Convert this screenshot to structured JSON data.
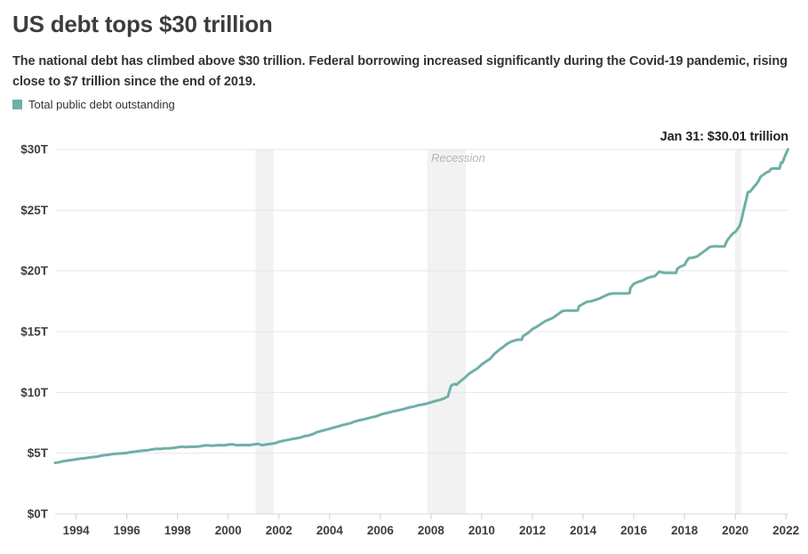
{
  "header": {
    "title": "US debt tops $30 trillion",
    "subtitle": "The national debt has climbed above $30 trillion. Federal borrowing increased significantly during the Covid-19 pandemic, rising close to $7 trillion since the end of 2019."
  },
  "legend": {
    "label": "Total public debt outstanding",
    "swatch_color": "#6fafa7"
  },
  "annotation": "Jan 31: $30.01 trillion",
  "recession_label": "Recession",
  "colors": {
    "line": "#6fafa7",
    "band": "#f2f2f2",
    "grid": "#e7e7e7",
    "axis": "#d8d8d8",
    "tick": "#cccccc",
    "axis_text": "#3f3f3f",
    "title_text": "#3d3d3d",
    "muted_text": "#b5b5b5"
  },
  "chart_data": {
    "type": "line",
    "title": "US debt tops $30 trillion",
    "series_name": "Total public debt outstanding",
    "unit": "trillions of US dollars",
    "xlabel": "",
    "ylabel": "",
    "ylim": [
      0,
      30
    ],
    "x_range": [
      1993.17,
      2022.1
    ],
    "grid": "horizontal",
    "legend_position": "top-left",
    "annotation": {
      "text": "Jan 31: $30.01 trillion",
      "x": 2022.08,
      "y": 30.01
    },
    "y_ticks": [
      "$0T",
      "$5T",
      "$10T",
      "$15T",
      "$20T",
      "$25T",
      "$30T"
    ],
    "y_tick_values": [
      0,
      5,
      10,
      15,
      20,
      25,
      30
    ],
    "x_tick_values": [
      1994,
      1996,
      1998,
      2000,
      2002,
      2004,
      2006,
      2008,
      2010,
      2012,
      2014,
      2016,
      2018,
      2020,
      2022
    ],
    "recession_bands": [
      [
        2001.08,
        2001.79
      ],
      [
        2007.85,
        2009.37
      ],
      [
        2020.0,
        2020.25
      ]
    ],
    "points": [
      [
        1993.17,
        4.21
      ],
      [
        1993.33,
        4.26
      ],
      [
        1993.5,
        4.35
      ],
      [
        1993.67,
        4.4
      ],
      [
        1993.83,
        4.44
      ],
      [
        1994.0,
        4.5
      ],
      [
        1994.17,
        4.55
      ],
      [
        1994.33,
        4.59
      ],
      [
        1994.5,
        4.64
      ],
      [
        1994.67,
        4.68
      ],
      [
        1994.83,
        4.72
      ],
      [
        1995.0,
        4.8
      ],
      [
        1995.17,
        4.85
      ],
      [
        1995.33,
        4.89
      ],
      [
        1995.5,
        4.95
      ],
      [
        1995.67,
        4.97
      ],
      [
        1995.83,
        4.99
      ],
      [
        1996.0,
        5.02
      ],
      [
        1996.17,
        5.09
      ],
      [
        1996.33,
        5.13
      ],
      [
        1996.5,
        5.19
      ],
      [
        1996.67,
        5.22
      ],
      [
        1996.83,
        5.25
      ],
      [
        1997.0,
        5.31
      ],
      [
        1997.17,
        5.36
      ],
      [
        1997.33,
        5.35
      ],
      [
        1997.5,
        5.4
      ],
      [
        1997.67,
        5.41
      ],
      [
        1997.83,
        5.43
      ],
      [
        1998.0,
        5.49
      ],
      [
        1998.17,
        5.54
      ],
      [
        1998.33,
        5.51
      ],
      [
        1998.5,
        5.53
      ],
      [
        1998.67,
        5.53
      ],
      [
        1998.83,
        5.55
      ],
      [
        1999.0,
        5.61
      ],
      [
        1999.17,
        5.65
      ],
      [
        1999.33,
        5.61
      ],
      [
        1999.5,
        5.64
      ],
      [
        1999.67,
        5.66
      ],
      [
        1999.83,
        5.64
      ],
      [
        2000.0,
        5.71
      ],
      [
        2000.17,
        5.73
      ],
      [
        2000.33,
        5.66
      ],
      [
        2000.5,
        5.67
      ],
      [
        2000.67,
        5.67
      ],
      [
        2000.83,
        5.66
      ],
      [
        2001.0,
        5.72
      ],
      [
        2001.17,
        5.77
      ],
      [
        2001.33,
        5.66
      ],
      [
        2001.5,
        5.72
      ],
      [
        2001.67,
        5.77
      ],
      [
        2001.83,
        5.82
      ],
      [
        2002.0,
        5.94
      ],
      [
        2002.17,
        6.02
      ],
      [
        2002.33,
        6.09
      ],
      [
        2002.5,
        6.16
      ],
      [
        2002.67,
        6.22
      ],
      [
        2002.83,
        6.28
      ],
      [
        2003.0,
        6.4
      ],
      [
        2003.17,
        6.46
      ],
      [
        2003.33,
        6.56
      ],
      [
        2003.5,
        6.73
      ],
      [
        2003.67,
        6.83
      ],
      [
        2003.83,
        6.92
      ],
      [
        2004.0,
        7.01
      ],
      [
        2004.17,
        7.12
      ],
      [
        2004.33,
        7.2
      ],
      [
        2004.5,
        7.31
      ],
      [
        2004.67,
        7.4
      ],
      [
        2004.83,
        7.48
      ],
      [
        2005.0,
        7.62
      ],
      [
        2005.17,
        7.71
      ],
      [
        2005.33,
        7.78
      ],
      [
        2005.5,
        7.87
      ],
      [
        2005.67,
        7.96
      ],
      [
        2005.83,
        8.03
      ],
      [
        2006.0,
        8.17
      ],
      [
        2006.17,
        8.27
      ],
      [
        2006.33,
        8.35
      ],
      [
        2006.5,
        8.44
      ],
      [
        2006.67,
        8.52
      ],
      [
        2006.83,
        8.58
      ],
      [
        2007.0,
        8.68
      ],
      [
        2007.17,
        8.78
      ],
      [
        2007.33,
        8.84
      ],
      [
        2007.5,
        8.95
      ],
      [
        2007.67,
        9.01
      ],
      [
        2007.83,
        9.08
      ],
      [
        2008.0,
        9.19
      ],
      [
        2008.17,
        9.29
      ],
      [
        2008.33,
        9.38
      ],
      [
        2008.5,
        9.49
      ],
      [
        2008.58,
        9.58
      ],
      [
        2008.67,
        9.68
      ],
      [
        2008.71,
        10.02
      ],
      [
        2008.79,
        10.53
      ],
      [
        2008.87,
        10.66
      ],
      [
        2008.96,
        10.7
      ],
      [
        2009.0,
        10.63
      ],
      [
        2009.17,
        10.95
      ],
      [
        2009.33,
        11.2
      ],
      [
        2009.5,
        11.54
      ],
      [
        2009.67,
        11.77
      ],
      [
        2009.83,
        11.98
      ],
      [
        2010.0,
        12.3
      ],
      [
        2010.17,
        12.55
      ],
      [
        2010.33,
        12.77
      ],
      [
        2010.5,
        13.17
      ],
      [
        2010.67,
        13.47
      ],
      [
        2010.83,
        13.72
      ],
      [
        2011.0,
        14.0
      ],
      [
        2011.17,
        14.19
      ],
      [
        2011.33,
        14.29
      ],
      [
        2011.42,
        14.34
      ],
      [
        2011.58,
        14.34
      ],
      [
        2011.63,
        14.64
      ],
      [
        2011.75,
        14.79
      ],
      [
        2011.87,
        14.97
      ],
      [
        2012.0,
        15.22
      ],
      [
        2012.17,
        15.4
      ],
      [
        2012.33,
        15.62
      ],
      [
        2012.5,
        15.86
      ],
      [
        2012.67,
        16.02
      ],
      [
        2012.83,
        16.16
      ],
      [
        2013.0,
        16.43
      ],
      [
        2013.17,
        16.69
      ],
      [
        2013.33,
        16.74
      ],
      [
        2013.5,
        16.74
      ],
      [
        2013.67,
        16.74
      ],
      [
        2013.79,
        16.75
      ],
      [
        2013.83,
        17.08
      ],
      [
        2014.0,
        17.3
      ],
      [
        2014.17,
        17.47
      ],
      [
        2014.33,
        17.51
      ],
      [
        2014.5,
        17.63
      ],
      [
        2014.67,
        17.75
      ],
      [
        2014.83,
        17.91
      ],
      [
        2015.0,
        18.08
      ],
      [
        2015.17,
        18.15
      ],
      [
        2015.33,
        18.15
      ],
      [
        2015.5,
        18.15
      ],
      [
        2015.67,
        18.15
      ],
      [
        2015.83,
        18.16
      ],
      [
        2015.87,
        18.61
      ],
      [
        2016.0,
        18.94
      ],
      [
        2016.17,
        19.1
      ],
      [
        2016.33,
        19.19
      ],
      [
        2016.5,
        19.38
      ],
      [
        2016.67,
        19.51
      ],
      [
        2016.83,
        19.57
      ],
      [
        2017.0,
        19.94
      ],
      [
        2017.17,
        19.85
      ],
      [
        2017.33,
        19.84
      ],
      [
        2017.5,
        19.84
      ],
      [
        2017.67,
        19.84
      ],
      [
        2017.71,
        20.16
      ],
      [
        2017.83,
        20.35
      ],
      [
        2018.0,
        20.49
      ],
      [
        2018.08,
        20.8
      ],
      [
        2018.17,
        21.05
      ],
      [
        2018.33,
        21.09
      ],
      [
        2018.5,
        21.2
      ],
      [
        2018.67,
        21.46
      ],
      [
        2018.83,
        21.7
      ],
      [
        2019.0,
        21.97
      ],
      [
        2019.17,
        22.03
      ],
      [
        2019.33,
        22.02
      ],
      [
        2019.5,
        22.02
      ],
      [
        2019.58,
        22.02
      ],
      [
        2019.67,
        22.46
      ],
      [
        2019.83,
        22.91
      ],
      [
        2019.92,
        23.1
      ],
      [
        2020.0,
        23.2
      ],
      [
        2020.08,
        23.41
      ],
      [
        2020.17,
        23.69
      ],
      [
        2020.25,
        24.22
      ],
      [
        2020.33,
        24.97
      ],
      [
        2020.42,
        25.75
      ],
      [
        2020.5,
        26.48
      ],
      [
        2020.58,
        26.52
      ],
      [
        2020.67,
        26.73
      ],
      [
        2020.75,
        26.95
      ],
      [
        2020.83,
        27.13
      ],
      [
        2020.92,
        27.4
      ],
      [
        2021.0,
        27.75
      ],
      [
        2021.08,
        27.87
      ],
      [
        2021.17,
        28.0
      ],
      [
        2021.25,
        28.13
      ],
      [
        2021.33,
        28.17
      ],
      [
        2021.42,
        28.4
      ],
      [
        2021.5,
        28.43
      ],
      [
        2021.58,
        28.43
      ],
      [
        2021.67,
        28.43
      ],
      [
        2021.75,
        28.43
      ],
      [
        2021.81,
        28.91
      ],
      [
        2021.87,
        28.91
      ],
      [
        2021.94,
        29.33
      ],
      [
        2022.0,
        29.62
      ],
      [
        2022.04,
        29.8
      ],
      [
        2022.08,
        30.01
      ]
    ]
  }
}
